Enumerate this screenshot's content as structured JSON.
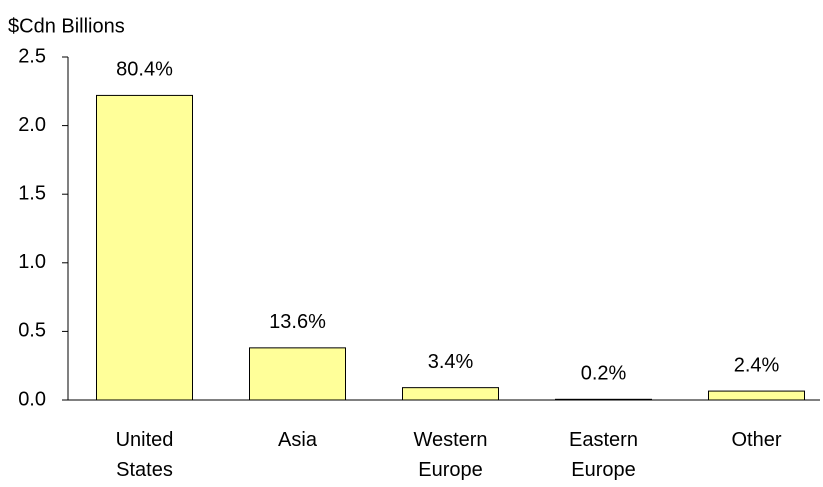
{
  "chart_data": {
    "type": "bar",
    "y_axis_label": "$Cdn Billions",
    "categories": [
      "United States",
      "Asia",
      "Western Europe",
      "Eastern Europe",
      "Other"
    ],
    "values": [
      2.22,
      0.38,
      0.09,
      0.005,
      0.065
    ],
    "share_labels": [
      "80.4%",
      "13.6%",
      "3.4%",
      "0.2%",
      "2.4%"
    ],
    "color": "#ffff99",
    "ylim": [
      0,
      2.5
    ],
    "yticks": [
      {
        "value": 0,
        "label": "0.0"
      },
      0.5,
      {
        "value": 1,
        "label": "1.0"
      },
      1.5,
      {
        "value": 2,
        "label": "2.0"
      },
      2.5
    ]
  }
}
